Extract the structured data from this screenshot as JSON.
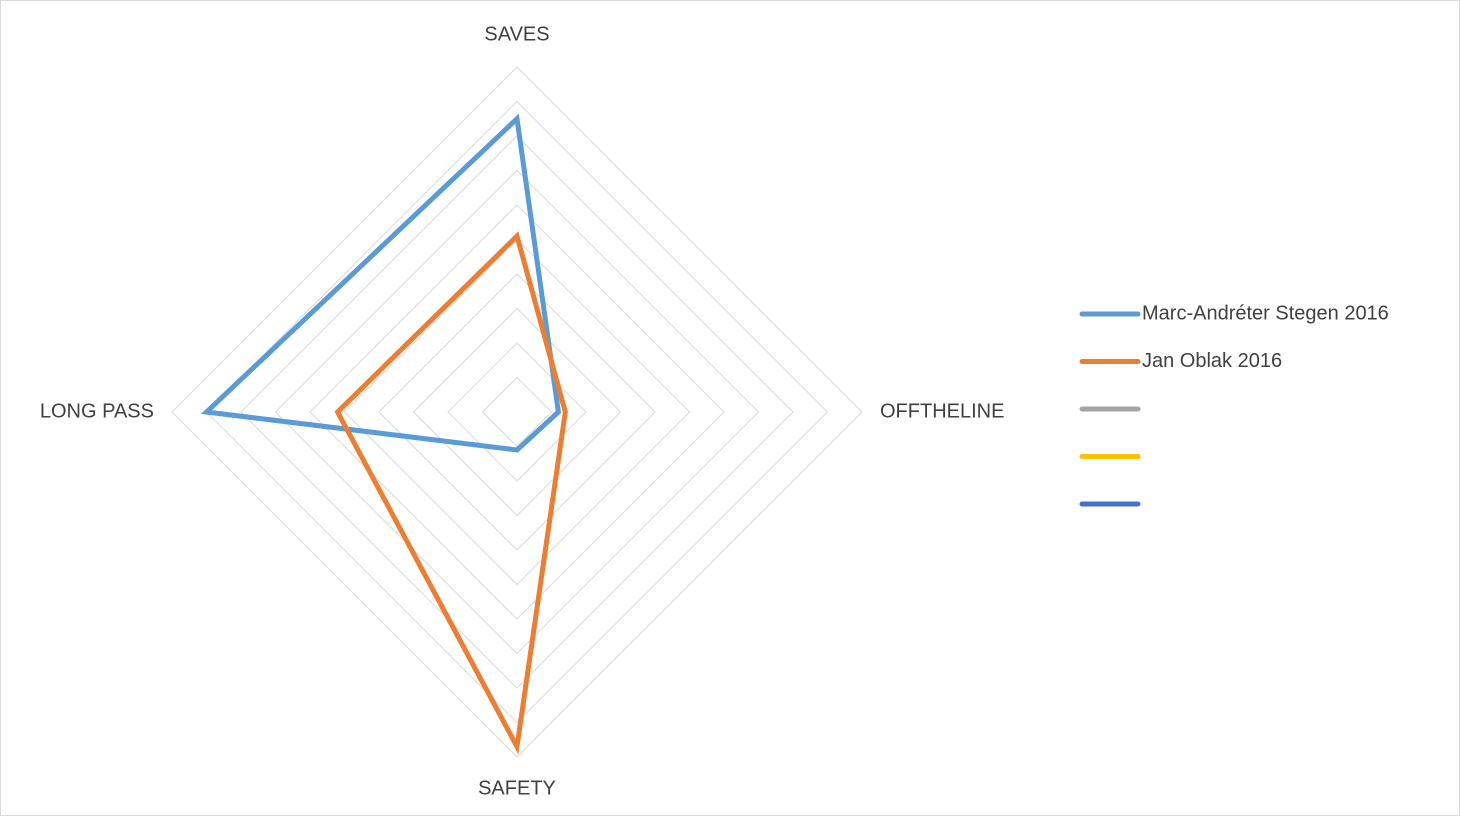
{
  "chart_data": {
    "type": "radar",
    "categories": [
      "SAVES",
      "OFFTHELINE",
      "SAFETY",
      "LONG PASS"
    ],
    "ylim": [
      0,
      10
    ],
    "yticks": [
      0,
      1,
      2,
      3,
      4,
      5,
      6,
      7,
      8,
      9,
      10
    ],
    "grid": true,
    "legend": "right",
    "series": [
      {
        "name": "Marc-Andréter Stegen 2016",
        "color": "#5b9bd5",
        "values": [
          8.5,
          1.2,
          1.1,
          9.0
        ]
      },
      {
        "name": "Jan Oblak 2016",
        "color": "#ed7d31",
        "values": [
          5.1,
          1.4,
          9.7,
          5.2
        ]
      },
      {
        "name": null,
        "color": "#a5a5a5",
        "values": [
          null,
          null,
          null,
          null
        ]
      },
      {
        "name": null,
        "color": "#ffc000",
        "values": [
          null,
          null,
          null,
          null
        ]
      },
      {
        "name": null,
        "color": "#4472c4",
        "values": [
          null,
          null,
          null,
          null
        ]
      }
    ]
  }
}
